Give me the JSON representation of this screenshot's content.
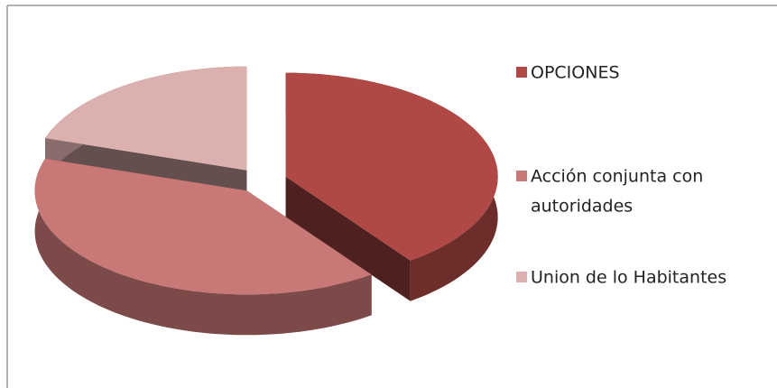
{
  "chart_data": {
    "type": "pie3d",
    "categories": [
      "OPCIONES",
      "Acción conjunta con autoridades",
      "Union de lo Habitantes"
    ],
    "category_lines": [
      [
        "OPCIONES"
      ],
      [
        "Acción conjunta con",
        "autoridades"
      ],
      [
        "Union de lo Habitantes"
      ]
    ],
    "values": [
      40,
      40,
      20
    ],
    "colors": [
      "#b04846",
      "#c87876",
      "#dcb0ae"
    ],
    "exploded": true
  }
}
